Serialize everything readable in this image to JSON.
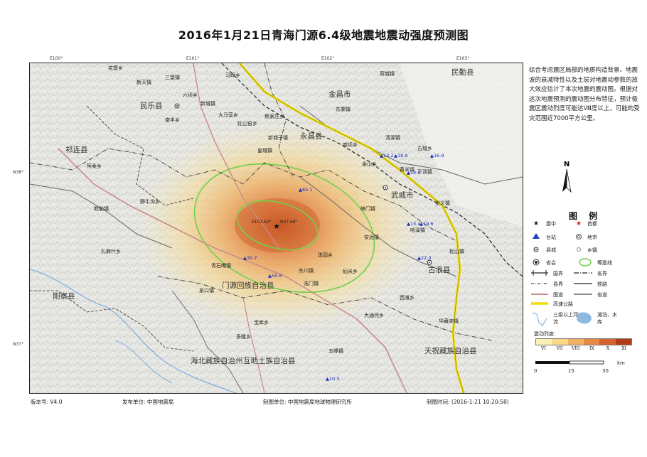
{
  "title": "2016年1月21日青海门源6.4级地震地震动强度预测图",
  "coords": {
    "top": [
      "E100°",
      "E101°",
      "E102°",
      "E103°"
    ],
    "left": [
      "N38°",
      "N37°"
    ]
  },
  "description": "综合考虑震区局部的地质构造背景、地震波的衰减特性以及土层对地震动参数的放大效应估计了本次地震的震动图。根据对这次地震预测的震动图分布特征，预计极震区震动烈度可能达Ⅷ度以上，可能的受灾范围近7000平方公里。",
  "compass_letter": "N",
  "legend": {
    "title": "图 例",
    "items": {
      "epicenter": "震中",
      "capital": "首都",
      "station": "台站",
      "prefecture": "地市",
      "county": "县城",
      "township": "乡镇",
      "province_capital": "省会",
      "isoseismal": "等震线",
      "national_border": "国界",
      "provincial_border": "省界",
      "county_border": "县界",
      "railway": "铁路",
      "national_road": "国道",
      "provincial_road": "省道",
      "expressway": "高速公路",
      "rivers": "三级以上河流",
      "lakes": "湖泊、水库"
    },
    "intensity_label": "震动烈度:",
    "intensity_classes": [
      "VI",
      "VII",
      "VIII",
      "IX",
      "X",
      "XI"
    ],
    "intensity_colors": [
      "#fbf1b8",
      "#f8d884",
      "#f2b264",
      "#e58a45",
      "#d5632e",
      "#b33b1c"
    ],
    "scale_ticks": [
      "0",
      "15",
      "30"
    ],
    "scale_unit": "km",
    "colors": {
      "station": "#1f3fd0",
      "epicenter": "#111111",
      "capital": "#e01010",
      "isoseismal": "#6fd24a",
      "national_road": "#c98c8c",
      "provincial_road": "#666666",
      "expressway": "#f0dc00",
      "river": "#6aa6e0",
      "lake": "#8fb8de"
    }
  },
  "map": {
    "counties": [
      "民乐县",
      "永昌县",
      "祁连县",
      "武威市",
      "古浪县",
      "门源回族自治县",
      "刚察县",
      "海北藏族自治州",
      "互助土族自治县",
      "天祝藏族自治县",
      "民勤县",
      "金昌市"
    ],
    "towns": [
      "花寨乡",
      "新天镇",
      "三堡镇",
      "马蹄乡",
      "六坝乡",
      "南丰乡",
      "新城镇",
      "大马营乡",
      "焦家庄乡",
      "红山窑乡",
      "新城子镇",
      "东寨镇",
      "双城镇",
      "南坝乡",
      "金山乡",
      "清源镇",
      "古城乡",
      "黄羊镇",
      "下双镇",
      "张义镇",
      "峡门镇",
      "阿柔乡",
      "默勒镇",
      "扎麻什乡",
      "野牛沟乡",
      "皇城镇",
      "青石嘴镇",
      "泉口镇",
      "东川镇",
      "浩门镇",
      "珠固乡",
      "仙米乡",
      "西滩乡",
      "哈溪镇",
      "安远镇",
      "松山镇",
      "华藏寺镇",
      "大通河乡",
      "宝库乡",
      "多隆乡",
      "五峰镇"
    ],
    "stations": [
      {
        "label": "13.2"
      },
      {
        "label": "18.9"
      },
      {
        "label": "16.9"
      },
      {
        "label": "14.6"
      },
      {
        "label": "65.1"
      },
      {
        "label": "13.4"
      },
      {
        "label": "19.6"
      },
      {
        "label": "22.3"
      },
      {
        "label": "30.7"
      },
      {
        "label": "55.8"
      },
      {
        "label": "10.3"
      }
    ],
    "epicenter_coord": "E101.62°",
    "epicenter_lat": "N37.68°"
  },
  "footer": {
    "version": "版本号: V4.0",
    "publisher": "发布单位: 中国地震局",
    "maker": "制图单位: 中国地震局地球物理研究所",
    "time": "制图时间: (2016-1-21 10:20:58)"
  }
}
